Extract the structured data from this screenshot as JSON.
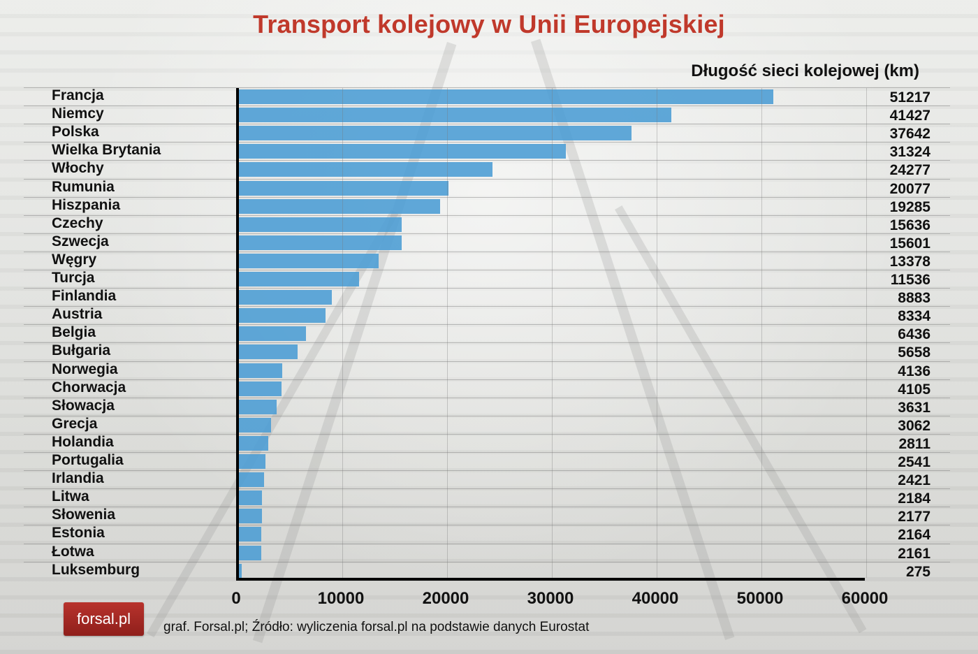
{
  "title": "Transport kolejowy w Unii Europejskiej",
  "axis_title": "Długość sieci kolejowej (km)",
  "logo_text": "forsal.pl",
  "source": "graf. Forsal.pl; Źródło: wyliczenia forsal.pl na podstawie danych Eurostat",
  "colors": {
    "bar": "#4a9cd4",
    "title": "#c0392b",
    "logo": "#a52a24"
  },
  "axis": {
    "ticks": [
      "0",
      "10000",
      "20000",
      "30000",
      "40000",
      "50000",
      "60000"
    ]
  },
  "rows": [
    {
      "country": "Francja",
      "value": "51217"
    },
    {
      "country": "Niemcy",
      "value": "41427"
    },
    {
      "country": "Polska",
      "value": "37642"
    },
    {
      "country": "Wielka Brytania",
      "value": "31324"
    },
    {
      "country": "Włochy",
      "value": "24277"
    },
    {
      "country": "Rumunia",
      "value": "20077"
    },
    {
      "country": "Hiszpania",
      "value": "19285"
    },
    {
      "country": "Czechy",
      "value": "15636"
    },
    {
      "country": "Szwecja",
      "value": "15601"
    },
    {
      "country": "Węgry",
      "value": "13378"
    },
    {
      "country": "Turcja",
      "value": "11536"
    },
    {
      "country": "Finlandia",
      "value": "8883"
    },
    {
      "country": "Austria",
      "value": "8334"
    },
    {
      "country": "Belgia",
      "value": "6436"
    },
    {
      "country": "Bułgaria",
      "value": "5658"
    },
    {
      "country": "Norwegia",
      "value": "4136"
    },
    {
      "country": "Chorwacja",
      "value": "4105"
    },
    {
      "country": "Słowacja",
      "value": "3631"
    },
    {
      "country": "Grecja",
      "value": "3062"
    },
    {
      "country": "Holandia",
      "value": "2811"
    },
    {
      "country": "Portugalia",
      "value": "2541"
    },
    {
      "country": "Irlandia",
      "value": "2421"
    },
    {
      "country": "Litwa",
      "value": "2184"
    },
    {
      "country": "Słowenia",
      "value": "2177"
    },
    {
      "country": "Estonia",
      "value": "2164"
    },
    {
      "country": "Łotwa",
      "value": "2161"
    },
    {
      "country": "Luksemburg",
      "value": "275"
    }
  ],
  "chart_data": {
    "type": "bar",
    "orientation": "horizontal",
    "title": "Transport kolejowy w Unii Europejskiej",
    "subtitle": "Długość sieci kolejowej (km)",
    "xlabel": "",
    "ylabel": "",
    "xlim": [
      0,
      60000
    ],
    "x_ticks": [
      0,
      10000,
      20000,
      30000,
      40000,
      50000,
      60000
    ],
    "grid": true,
    "legend": null,
    "categories": [
      "Francja",
      "Niemcy",
      "Polska",
      "Wielka Brytania",
      "Włochy",
      "Rumunia",
      "Hiszpania",
      "Czechy",
      "Szwecja",
      "Węgry",
      "Turcja",
      "Finlandia",
      "Austria",
      "Belgia",
      "Bułgaria",
      "Norwegia",
      "Chorwacja",
      "Słowacja",
      "Grecja",
      "Holandia",
      "Portugalia",
      "Irlandia",
      "Litwa",
      "Słowenia",
      "Estonia",
      "Łotwa",
      "Luksemburg"
    ],
    "values": [
      51217,
      41427,
      37642,
      31324,
      24277,
      20077,
      19285,
      15636,
      15601,
      13378,
      11536,
      8883,
      8334,
      6436,
      5658,
      4136,
      4105,
      3631,
      3062,
      2811,
      2541,
      2421,
      2184,
      2177,
      2164,
      2161,
      275
    ],
    "source": "graf. Forsal.pl; Źródło: wyliczenia forsal.pl na podstawie danych Eurostat"
  }
}
